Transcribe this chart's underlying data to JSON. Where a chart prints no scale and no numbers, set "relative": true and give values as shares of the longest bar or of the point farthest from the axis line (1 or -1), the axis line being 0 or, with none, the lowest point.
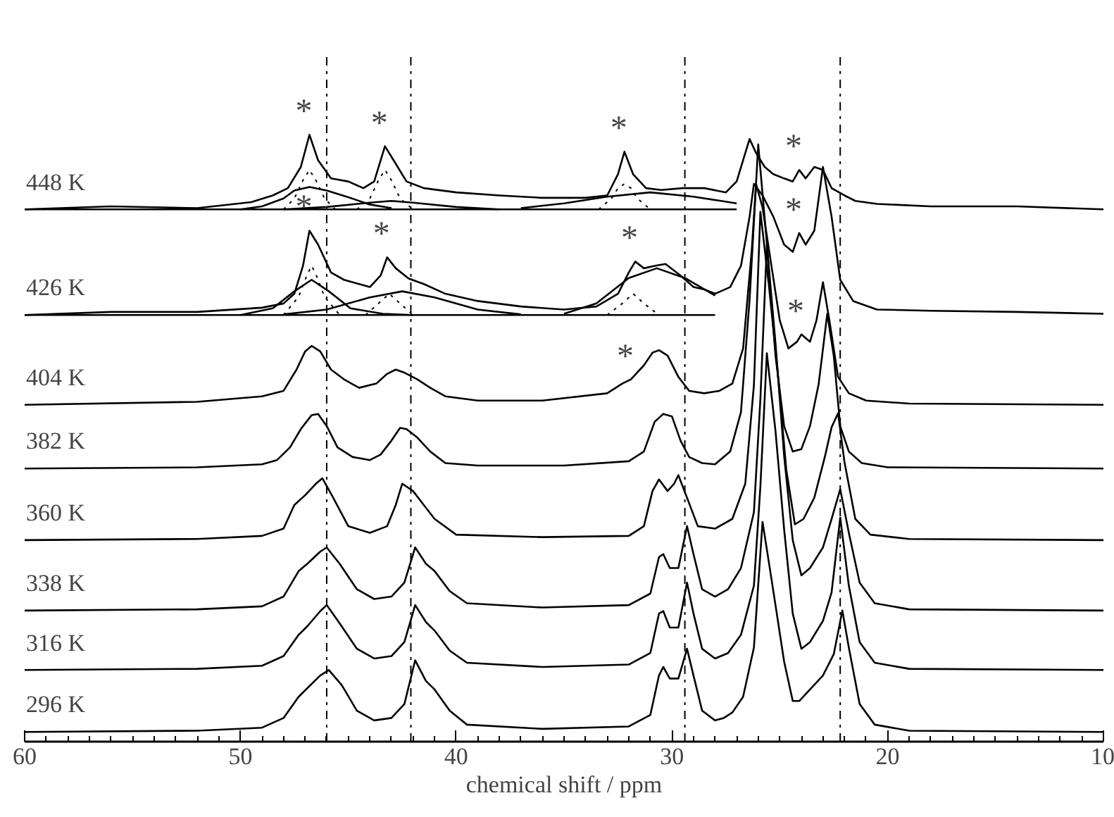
{
  "chart_data": {
    "type": "line",
    "xlabel": "chemical shift / ppm",
    "relative": true,
    "tick_labels": "x",
    "line_style": "solid",
    "xlim": [
      60,
      10
    ],
    "xticks": [
      60,
      {
        "value": 59,
        "label": null
      },
      {
        "value": 58,
        "label": null
      },
      {
        "value": 57,
        "label": null
      },
      {
        "value": 56,
        "label": null
      },
      {
        "value": 55,
        "label": null
      },
      {
        "value": 54,
        "label": null
      },
      {
        "value": 53,
        "label": null
      },
      {
        "value": 52,
        "label": null
      },
      {
        "value": 51,
        "label": null
      },
      50,
      {
        "value": 49,
        "label": null
      },
      {
        "value": 48,
        "label": null
      },
      {
        "value": 47,
        "label": null
      },
      {
        "value": 46,
        "label": null
      },
      {
        "value": 45,
        "label": null
      },
      {
        "value": 44,
        "label": null
      },
      {
        "value": 43,
        "label": null
      },
      {
        "value": 42,
        "label": null
      },
      {
        "value": 41,
        "label": null
      },
      40,
      {
        "value": 39,
        "label": null
      },
      {
        "value": 38,
        "label": null
      },
      {
        "value": 37,
        "label": null
      },
      {
        "value": 36,
        "label": null
      },
      {
        "value": 35,
        "label": null
      },
      {
        "value": 34,
        "label": null
      },
      {
        "value": 33,
        "label": null
      },
      {
        "value": 32,
        "label": null
      },
      {
        "value": 31,
        "label": null
      },
      30,
      {
        "value": 29,
        "label": null
      },
      {
        "value": 28,
        "label": null
      },
      {
        "value": 27,
        "label": null
      },
      {
        "value": 26,
        "label": null
      },
      {
        "value": 25,
        "label": null
      },
      {
        "value": 24,
        "label": null
      },
      {
        "value": 23,
        "label": null
      },
      {
        "value": 22,
        "label": null
      },
      {
        "value": 21,
        "label": null
      },
      20,
      {
        "value": 19,
        "label": null
      },
      {
        "value": 18,
        "label": null
      },
      {
        "value": 17,
        "label": null
      },
      {
        "value": 16,
        "label": null
      },
      {
        "value": 15,
        "label": null
      },
      {
        "value": 14,
        "label": null
      },
      {
        "value": 13,
        "label": null
      },
      {
        "value": 12,
        "label": null
      },
      {
        "value": 11,
        "label": null
      },
      10
    ],
    "series": [
      {
        "name": "296 K",
        "color": "#000000",
        "x": [
          60,
          52,
          49,
          48,
          47.3,
          46.9,
          46.3,
          45.9,
          45.3,
          44.6,
          43.8,
          43,
          42.4,
          41.9,
          41.4,
          41,
          40.3,
          39.5,
          36,
          32,
          31,
          30.6,
          30.4,
          30.1,
          29.7,
          29.3,
          29.0,
          28.6,
          28,
          27.6,
          27.2,
          26.7,
          26.2,
          25.8,
          25.5,
          25.2,
          24.8,
          24.4,
          24.1,
          23.6,
          23,
          22.5,
          22.1,
          21.8,
          21.3,
          20.6,
          19,
          10
        ],
        "values": [
          0.016,
          0.018,
          0.023,
          0.039,
          0.074,
          0.088,
          0.109,
          0.118,
          0.093,
          0.051,
          0.035,
          0.039,
          0.062,
          0.134,
          0.1,
          0.086,
          0.051,
          0.028,
          0.021,
          0.025,
          0.044,
          0.109,
          0.123,
          0.104,
          0.104,
          0.153,
          0.109,
          0.051,
          0.035,
          0.039,
          0.048,
          0.074,
          0.155,
          0.362,
          0.294,
          0.225,
          0.132,
          0.067,
          0.067,
          0.086,
          0.109,
          0.144,
          0.216,
          0.155,
          0.062,
          0.028,
          0.018,
          0.016
        ]
      },
      {
        "name": "316 K",
        "color": "#000000",
        "x": [
          60,
          52,
          49,
          48,
          47.3,
          46.9,
          46.3,
          46.0,
          45.4,
          44.6,
          43.8,
          43,
          42.4,
          41.9,
          41.4,
          41,
          40.3,
          39.5,
          36,
          32,
          31,
          30.6,
          30.4,
          30.1,
          29.7,
          29.3,
          29.0,
          28.6,
          28,
          27.4,
          26.8,
          26.2,
          25.9,
          25.6,
          25.2,
          24.8,
          24.4,
          24.0,
          23.6,
          23,
          22.6,
          22.2,
          21.8,
          21.3,
          20.6,
          19,
          10
        ],
        "values": [
          0.118,
          0.12,
          0.125,
          0.141,
          0.176,
          0.19,
          0.215,
          0.225,
          0.195,
          0.153,
          0.137,
          0.141,
          0.164,
          0.225,
          0.197,
          0.183,
          0.15,
          0.13,
          0.123,
          0.127,
          0.146,
          0.211,
          0.215,
          0.188,
          0.188,
          0.262,
          0.211,
          0.153,
          0.137,
          0.146,
          0.176,
          0.257,
          0.42,
          0.64,
          0.512,
          0.35,
          0.211,
          0.153,
          0.164,
          0.199,
          0.246,
          0.369,
          0.257,
          0.164,
          0.13,
          0.12,
          0.118
        ]
      },
      {
        "name": "338 K",
        "color": "#000000",
        "x": [
          60,
          52,
          49,
          48,
          47.3,
          46.9,
          46.3,
          46.0,
          45.4,
          44.6,
          43.8,
          43,
          42.4,
          41.9,
          41.4,
          41,
          40.3,
          39.5,
          36,
          32,
          31,
          30.6,
          30.4,
          30.1,
          29.7,
          29.3,
          29.0,
          28.6,
          28,
          27.4,
          26.8,
          26.2,
          25.9,
          25.6,
          25.2,
          24.8,
          24.4,
          24.0,
          23.6,
          23,
          22.6,
          22.2,
          21.8,
          21.3,
          20.6,
          19,
          10
        ],
        "values": [
          0.216,
          0.218,
          0.223,
          0.239,
          0.281,
          0.293,
          0.313,
          0.32,
          0.293,
          0.251,
          0.235,
          0.239,
          0.262,
          0.32,
          0.293,
          0.281,
          0.248,
          0.228,
          0.221,
          0.225,
          0.244,
          0.304,
          0.309,
          0.286,
          0.286,
          0.355,
          0.309,
          0.251,
          0.239,
          0.251,
          0.286,
          0.378,
          0.564,
          0.819,
          0.657,
          0.471,
          0.332,
          0.274,
          0.286,
          0.32,
          0.367,
          0.416,
          0.344,
          0.262,
          0.228,
          0.218,
          0.216
        ]
      },
      {
        "name": "360 K",
        "color": "#000000",
        "x": [
          60,
          52,
          49,
          48,
          47.5,
          47,
          46.5,
          46.2,
          45.7,
          45,
          44,
          43.2,
          42.8,
          42.5,
          42,
          41.5,
          41,
          40,
          36,
          32,
          31.3,
          30.9,
          30.6,
          30.2,
          29.9,
          29.7,
          29.3,
          28.8,
          28,
          27.2,
          26.6,
          26.2,
          25.9,
          25.5,
          25.1,
          24.7,
          24.3,
          23.9,
          23.4,
          22.9,
          22.6,
          22.3,
          22.0,
          21.5,
          20.8,
          19,
          10
        ],
        "values": [
          0.332,
          0.334,
          0.339,
          0.351,
          0.39,
          0.406,
          0.425,
          0.434,
          0.402,
          0.355,
          0.344,
          0.355,
          0.39,
          0.425,
          0.413,
          0.39,
          0.367,
          0.341,
          0.337,
          0.339,
          0.355,
          0.413,
          0.432,
          0.413,
          0.425,
          0.439,
          0.402,
          0.355,
          0.351,
          0.367,
          0.425,
          0.587,
          0.873,
          0.75,
          0.61,
          0.448,
          0.358,
          0.367,
          0.402,
          0.471,
          0.518,
          0.541,
          0.46,
          0.367,
          0.341,
          0.334,
          0.332
        ]
      },
      {
        "name": "382 K",
        "color": "#000000",
        "x": [
          60,
          52,
          49,
          48.3,
          47.7,
          47.2,
          46.7,
          46.4,
          46,
          45.5,
          44.8,
          44,
          43.5,
          43,
          42.6,
          42.3,
          41.8,
          41.2,
          40.5,
          39,
          35,
          32,
          31.3,
          30.8,
          30.4,
          30.0,
          29.6,
          29.2,
          28.6,
          28,
          27.3,
          26.8,
          26.4,
          26.0,
          25.6,
          25.2,
          24.8,
          24.4,
          24.0,
          23.6,
          23.2,
          22.8,
          22.5,
          22.2,
          21.8,
          21.2,
          20,
          10
        ],
        "values": [
          0.45,
          0.452,
          0.457,
          0.464,
          0.485,
          0.515,
          0.538,
          0.54,
          0.52,
          0.485,
          0.469,
          0.464,
          0.473,
          0.496,
          0.517,
          0.515,
          0.501,
          0.478,
          0.459,
          0.455,
          0.455,
          0.462,
          0.478,
          0.527,
          0.54,
          0.536,
          0.496,
          0.469,
          0.459,
          0.457,
          0.478,
          0.543,
          0.728,
          0.984,
          0.821,
          0.636,
          0.52,
          0.478,
          0.482,
          0.52,
          0.589,
          0.705,
          0.636,
          0.52,
          0.478,
          0.459,
          0.452,
          0.45
        ]
      },
      {
        "name": "404 K",
        "color": "#000000",
        "x": [
          60,
          52,
          49,
          48,
          47.4,
          47,
          46.7,
          46.3,
          45.8,
          45.2,
          44.5,
          43.7,
          43.2,
          42.8,
          42.4,
          41.8,
          41.2,
          40.5,
          39,
          36,
          33,
          32.3,
          31.9,
          31.3,
          30.9,
          30.6,
          30.2,
          29.7,
          29.2,
          28.5,
          27.8,
          27.2,
          26.7,
          26.3,
          26.1,
          25.8,
          25.4,
          25.0,
          24.6,
          24.2,
          24.0,
          23.6,
          23.3,
          23.0,
          22.7,
          22.3,
          21.8,
          21,
          19,
          10
        ],
        "values": [
          0.555,
          0.56,
          0.569,
          0.578,
          0.613,
          0.643,
          0.652,
          0.643,
          0.613,
          0.597,
          0.583,
          0.59,
          0.606,
          0.613,
          0.608,
          0.597,
          0.583,
          0.569,
          0.562,
          0.562,
          0.574,
          0.59,
          0.597,
          0.62,
          0.641,
          0.645,
          0.636,
          0.601,
          0.578,
          0.574,
          0.578,
          0.59,
          0.648,
          0.81,
          0.919,
          0.88,
          0.787,
          0.694,
          0.648,
          0.659,
          0.671,
          0.659,
          0.694,
          0.757,
          0.694,
          0.601,
          0.574,
          0.562,
          0.557,
          0.555
        ]
      },
      {
        "name": "426 K",
        "color": "#000000",
        "x": [
          60,
          56,
          52,
          49,
          48,
          47.5,
          47.1,
          46.8,
          46.4,
          45.8,
          45.2,
          44.5,
          44,
          43.5,
          43.2,
          42.8,
          42.2,
          41.5,
          40.5,
          39,
          37,
          35,
          33.5,
          32.5,
          32,
          31.7,
          31.3,
          30.8,
          30.3,
          29.6,
          29,
          28.5,
          28,
          27.3,
          26.8,
          26.4,
          26.2,
          25.8,
          25.3,
          24.8,
          24.4,
          24.1,
          23.8,
          23.4,
          23.0,
          22.6,
          22.2,
          21.6,
          20.5,
          18,
          14,
          10
        ],
        "values": [
          0.703,
          0.708,
          0.708,
          0.715,
          0.722,
          0.738,
          0.784,
          0.842,
          0.819,
          0.773,
          0.761,
          0.754,
          0.749,
          0.768,
          0.798,
          0.78,
          0.763,
          0.754,
          0.738,
          0.726,
          0.717,
          0.712,
          0.717,
          0.738,
          0.773,
          0.791,
          0.78,
          0.784,
          0.787,
          0.768,
          0.749,
          0.745,
          0.738,
          0.749,
          0.784,
          0.865,
          0.919,
          0.9,
          0.865,
          0.819,
          0.807,
          0.838,
          0.819,
          0.842,
          0.947,
          0.865,
          0.761,
          0.726,
          0.712,
          0.71,
          0.708,
          0.705
        ]
      },
      {
        "name": "448 K",
        "color": "#000000",
        "x": [
          60,
          56,
          52,
          49.5,
          48.5,
          47.8,
          47.2,
          46.8,
          46.4,
          45.8,
          45,
          44.3,
          43.8,
          43.3,
          42.9,
          42.3,
          41.5,
          40,
          38,
          36,
          34,
          33,
          32.5,
          32.2,
          31.8,
          31.2,
          30.5,
          29.5,
          28.5,
          27.5,
          27,
          26.7,
          26.4,
          26.1,
          25.7,
          25.3,
          24.8,
          24.4,
          24.1,
          23.8,
          23.4,
          23.0,
          22.6,
          22.0,
          21.5,
          20.5,
          18,
          14,
          10
        ],
        "values": [
          0.877,
          0.882,
          0.879,
          0.889,
          0.9,
          0.912,
          0.947,
          1.0,
          0.958,
          0.928,
          0.923,
          0.912,
          0.923,
          0.981,
          0.958,
          0.923,
          0.912,
          0.905,
          0.9,
          0.896,
          0.896,
          0.9,
          0.935,
          0.972,
          0.935,
          0.912,
          0.909,
          0.912,
          0.912,
          0.905,
          0.923,
          0.958,
          0.993,
          0.97,
          0.947,
          0.935,
          0.928,
          0.923,
          0.942,
          0.928,
          0.947,
          0.942,
          0.912,
          0.9,
          0.891,
          0.886,
          0.882,
          0.882,
          0.877
        ]
      },
      {
        "color": "#000000",
        "x": [
          60,
          27
        ],
        "values": [
          0.877,
          0.877
        ]
      },
      {
        "color": "#000000",
        "x": [
          50,
          49,
          48,
          47.5,
          46.8,
          46,
          45,
          44,
          43
        ],
        "values": [
          0.877,
          0.882,
          0.895,
          0.908,
          0.914,
          0.908,
          0.897,
          0.885,
          0.879
        ]
      },
      {
        "color": "#000000",
        "x": [
          48,
          46,
          44,
          43,
          42,
          40,
          38
        ],
        "values": [
          0.877,
          0.881,
          0.888,
          0.891,
          0.888,
          0.881,
          0.877
        ]
      },
      {
        "color": "#000000",
        "x": [
          37,
          35,
          33,
          31,
          29,
          27
        ],
        "values": [
          0.879,
          0.887,
          0.898,
          0.905,
          0.898,
          0.887
        ]
      },
      {
        "color": "#000000",
        "line_style": "dotted",
        "x": [
          48,
          47.5,
          47.1,
          46.8,
          46.5,
          46.1,
          45.6
        ],
        "values": [
          0.877,
          0.895,
          0.925,
          0.942,
          0.925,
          0.895,
          0.877
        ]
      },
      {
        "color": "#000000",
        "line_style": "dotted",
        "x": [
          44.6,
          44,
          43.6,
          43.3,
          43,
          42.6,
          42
        ],
        "values": [
          0.877,
          0.895,
          0.925,
          0.942,
          0.925,
          0.895,
          0.877
        ]
      },
      {
        "color": "#000000",
        "line_style": "dotted",
        "x": [
          33.4,
          32.8,
          32.5,
          32.2,
          31.9,
          31.6,
          31
        ],
        "values": [
          0.877,
          0.895,
          0.912,
          0.919,
          0.912,
          0.895,
          0.877
        ]
      },
      {
        "color": "#000000",
        "x": [
          60,
          28
        ],
        "values": [
          0.703,
          0.703
        ]
      },
      {
        "color": "#000000",
        "x": [
          50,
          48.5,
          47.5,
          46.7,
          45.9,
          44.9,
          43.4,
          42
        ],
        "values": [
          0.703,
          0.714,
          0.742,
          0.761,
          0.742,
          0.714,
          0.705,
          0.703
        ]
      },
      {
        "color": "#000000",
        "x": [
          48,
          46,
          44,
          42.5,
          41,
          39,
          37
        ],
        "values": [
          0.704,
          0.712,
          0.732,
          0.742,
          0.732,
          0.712,
          0.704
        ]
      },
      {
        "color": "#000000",
        "x": [
          35,
          33.5,
          32,
          30.7,
          29.4,
          28
        ],
        "values": [
          0.705,
          0.722,
          0.764,
          0.78,
          0.764,
          0.735
        ]
      },
      {
        "color": "#000000",
        "line_style": "dotted",
        "x": [
          48,
          47.3,
          46.9,
          46.7,
          46.5,
          46.1,
          45.4
        ],
        "values": [
          0.703,
          0.733,
          0.77,
          0.784,
          0.77,
          0.733,
          0.703
        ]
      },
      {
        "color": "#000000",
        "line_style": "dotted",
        "x": [
          44.2,
          43.6,
          43.1,
          42.6,
          42
        ],
        "values": [
          0.703,
          0.722,
          0.738,
          0.722,
          0.703
        ]
      },
      {
        "color": "#000000",
        "line_style": "dotted",
        "x": [
          33,
          32.3,
          31.8,
          31.3,
          30.6
        ],
        "values": [
          0.703,
          0.722,
          0.738,
          0.722,
          0.703
        ]
      }
    ],
    "ref_lines": [
      {
        "axis": "x",
        "value": 46.0,
        "line_style": "dashdot",
        "color": "#000000"
      },
      {
        "axis": "x",
        "value": 42.1,
        "line_style": "dashdot",
        "color": "#000000"
      },
      {
        "axis": "x",
        "value": 29.4,
        "line_style": "dashdot",
        "color": "#000000"
      },
      {
        "axis": "x",
        "value": 22.2,
        "line_style": "dashdot",
        "color": "#000000"
      }
    ],
    "annotations": [
      {
        "text": "*",
        "x": 46.8,
        "y": 1.0
      },
      {
        "text": "*",
        "x": 43.3,
        "y": 0.981
      },
      {
        "text": "*",
        "x": 32.2,
        "y": 0.972
      },
      {
        "text": "*",
        "x": 24.1,
        "y": 0.942
      },
      {
        "text": "*",
        "x": 46.8,
        "y": 0.842
      },
      {
        "text": "*",
        "x": 43.2,
        "y": 0.798
      },
      {
        "text": "*",
        "x": 31.7,
        "y": 0.791
      },
      {
        "text": "*",
        "x": 24.1,
        "y": 0.838
      },
      {
        "text": "*",
        "x": 31.9,
        "y": 0.597
      },
      {
        "text": "*",
        "x": 24.0,
        "y": 0.671
      }
    ]
  }
}
